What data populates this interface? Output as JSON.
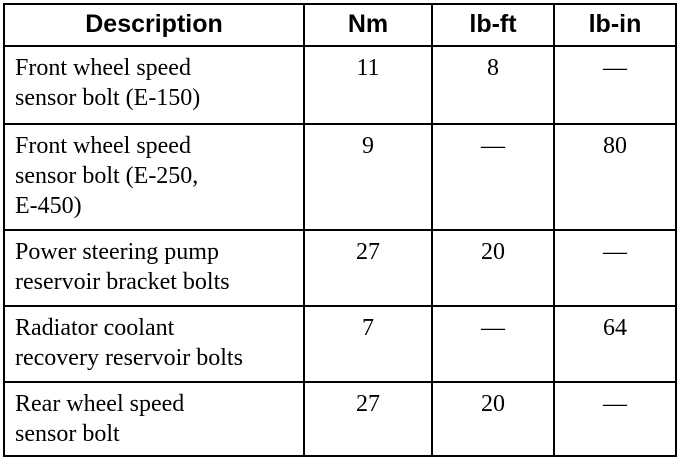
{
  "table": {
    "headers": {
      "description": "Description",
      "nm": "Nm",
      "lb_ft": "lb-ft",
      "lb_in": "lb-in"
    },
    "rows": [
      {
        "description_lines": [
          "Front wheel speed",
          "sensor bolt (E-150)"
        ],
        "nm": "11",
        "lb_ft": "8",
        "lb_in": "—"
      },
      {
        "description_lines": [
          "Front wheel speed",
          "sensor bolt (E-250,",
          "E-450)"
        ],
        "nm": "9",
        "lb_ft": "—",
        "lb_in": "80"
      },
      {
        "description_lines": [
          "Power steering pump",
          "reservoir bracket bolts"
        ],
        "nm": "27",
        "lb_ft": "20",
        "lb_in": "—"
      },
      {
        "description_lines": [
          "Radiator coolant",
          "recovery reservoir bolts"
        ],
        "nm": "7",
        "lb_ft": "—",
        "lb_in": "64"
      },
      {
        "description_lines": [
          "Rear wheel speed",
          "sensor bolt"
        ],
        "nm": "27",
        "lb_ft": "20",
        "lb_in": "—"
      }
    ]
  }
}
